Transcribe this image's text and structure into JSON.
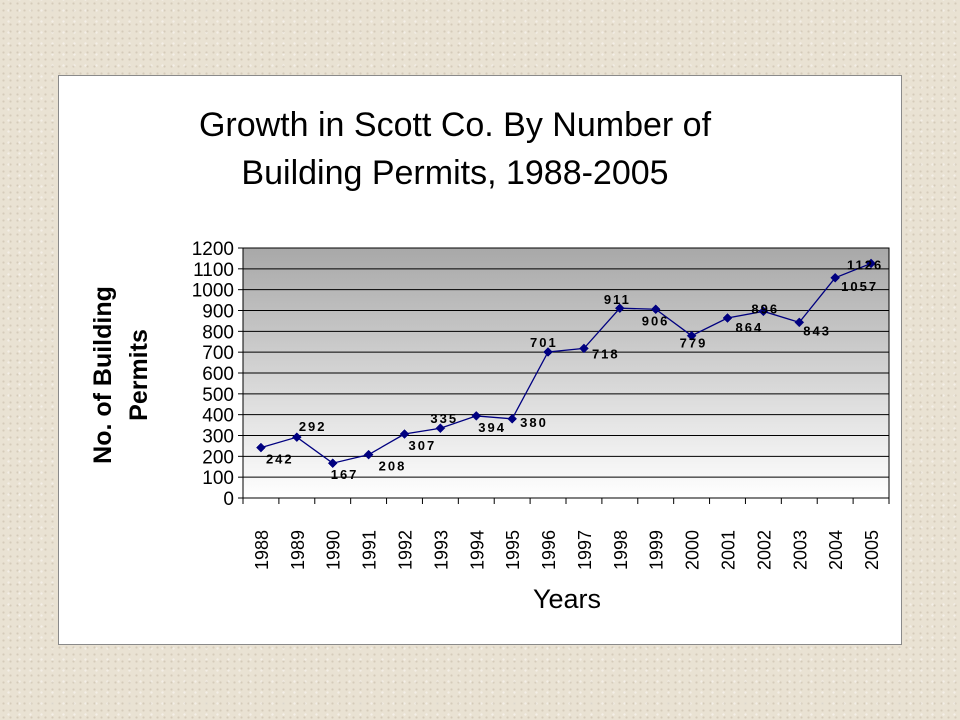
{
  "chart_data": {
    "type": "line",
    "title_lines": [
      "Growth in Scott Co. By Number of",
      "Building Permits, 1988-2005"
    ],
    "ylabel_lines": [
      "No. of Building",
      "Permits"
    ],
    "xlabel": "Years",
    "categories": [
      "1988",
      "1989",
      "1990",
      "1991",
      "1992",
      "1993",
      "1994",
      "1995",
      "1996",
      "1997",
      "1998",
      "1999",
      "2000",
      "2001",
      "2002",
      "2003",
      "2004",
      "2005"
    ],
    "values": [
      242,
      292,
      167,
      208,
      307,
      335,
      394,
      380,
      701,
      718,
      911,
      906,
      779,
      864,
      896,
      843,
      1057,
      1126
    ],
    "data_labels": [
      "242",
      "292",
      "167",
      "208",
      "307",
      "335",
      "394",
      "380",
      "701",
      "718",
      "911",
      "906",
      "779",
      "864",
      "896",
      "843",
      "1057",
      "1126"
    ],
    "y_ticks": [
      0,
      100,
      200,
      300,
      400,
      500,
      600,
      700,
      800,
      900,
      1000,
      1100,
      1200
    ],
    "ylim": [
      0,
      1200
    ],
    "grid": true,
    "legend": "none",
    "colors": {
      "line": "#000080",
      "marker": "#000080",
      "plot_top": "#a8a8a8",
      "plot_bottom": "#ffffff",
      "gridline": "#000000"
    }
  }
}
